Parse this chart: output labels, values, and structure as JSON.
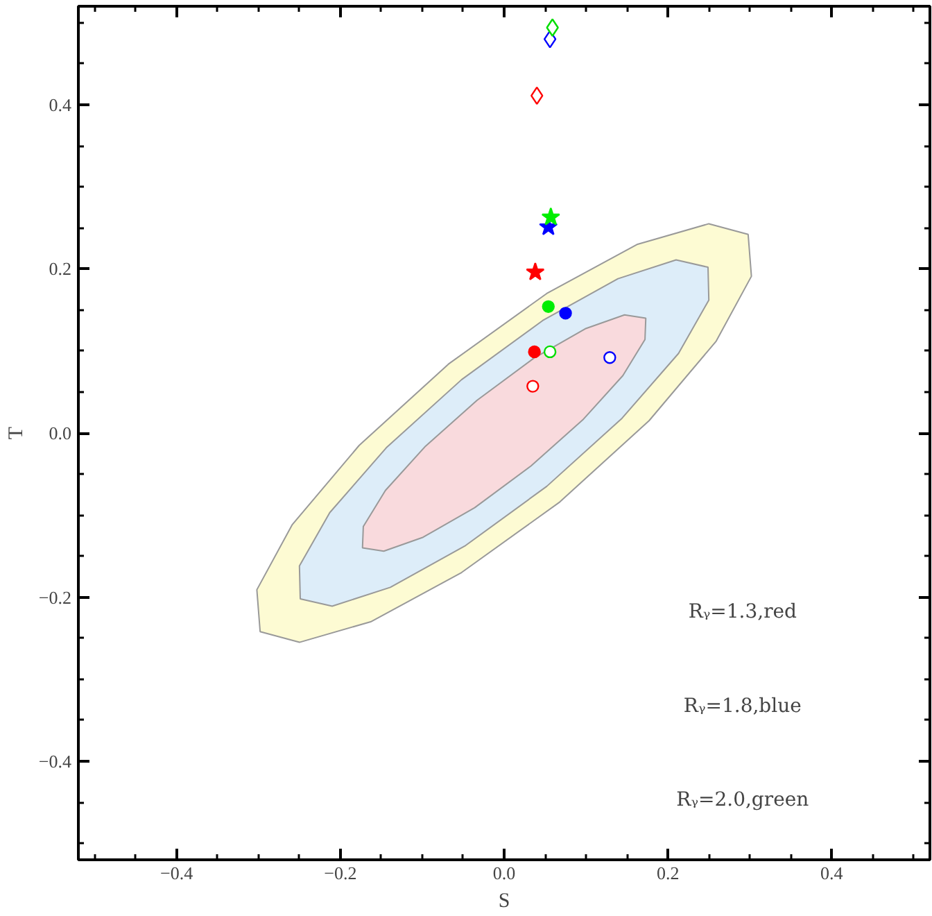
{
  "chart_data": {
    "type": "scatter",
    "xlabel": "S",
    "ylabel": "T",
    "xlim": [
      -0.52,
      0.52
    ],
    "ylim": [
      -0.52,
      0.52
    ],
    "xticks": [
      {
        "value": -0.4,
        "label": "−0.4"
      },
      {
        "value": -0.2,
        "label": "−0.2"
      },
      {
        "value": 0.0,
        "label": "0.0"
      },
      {
        "value": 0.2,
        "label": "0.2"
      },
      {
        "value": 0.4,
        "label": "0.4"
      }
    ],
    "yticks": [
      {
        "value": -0.4,
        "label": "−0.4"
      },
      {
        "value": -0.2,
        "label": "−0.2"
      },
      {
        "value": 0.0,
        "label": "0.0"
      },
      {
        "value": 0.2,
        "label": "0.2"
      },
      {
        "value": 0.4,
        "label": "0.4"
      }
    ],
    "grid": false,
    "series": [
      {
        "type": "area",
        "color": "#fdfbd3",
        "x": [
          0.298,
          0.25,
          0.163,
          0.052,
          -0.068,
          -0.177,
          -0.259,
          -0.302,
          -0.298,
          -0.25,
          -0.163,
          -0.052,
          0.068,
          0.177,
          0.259,
          0.302
        ],
        "values": [
          0.242,
          0.255,
          0.23,
          0.17,
          0.084,
          -0.015,
          -0.112,
          -0.191,
          -0.242,
          -0.255,
          -0.23,
          -0.17,
          -0.084,
          0.015,
          0.112,
          0.191
        ]
      },
      {
        "type": "area",
        "color": "#ddedf9",
        "x": [
          0.249,
          0.21,
          0.139,
          0.047,
          -0.052,
          -0.144,
          -0.213,
          -0.25,
          -0.249,
          -0.21,
          -0.139,
          -0.047,
          0.052,
          0.144,
          0.213,
          0.25
        ],
        "values": [
          0.202,
          0.211,
          0.188,
          0.137,
          0.065,
          -0.018,
          -0.097,
          -0.162,
          -0.202,
          -0.211,
          -0.188,
          -0.137,
          -0.065,
          0.018,
          0.097,
          0.162
        ]
      },
      {
        "type": "area",
        "color": "#f9dadd",
        "x": [
          0.173,
          0.147,
          0.099,
          0.036,
          -0.033,
          -0.096,
          -0.145,
          -0.172,
          -0.173,
          -0.147,
          -0.099,
          -0.036,
          0.033,
          0.096,
          0.145,
          0.172
        ],
        "values": [
          0.14,
          0.144,
          0.127,
          0.091,
          0.04,
          -0.016,
          -0.07,
          -0.114,
          -0.14,
          -0.144,
          -0.127,
          -0.091,
          -0.04,
          0.016,
          0.07,
          0.114
        ]
      },
      {
        "marker": "circle",
        "color": "#ffffff",
        "x": [
          0.035,
          0.129,
          0.056
        ],
        "values": [
          0.057,
          0.092,
          0.099
        ],
        "colors": [
          "#ff0000",
          "#0000ff",
          "#00dd00"
        ]
      },
      {
        "marker": "circle",
        "x": [
          0.037,
          0.075,
          0.054
        ],
        "values": [
          0.099,
          0.146,
          0.154
        ],
        "colors": [
          "#ff0000",
          "#0000ff",
          "#00ee00"
        ]
      },
      {
        "marker": "star",
        "x": [
          0.038,
          0.054,
          0.057
        ],
        "values": [
          0.196,
          0.251,
          0.263
        ],
        "colors": [
          "#ff0000",
          "#0000ff",
          "#00ee00"
        ]
      },
      {
        "marker": "diamond",
        "color": "#ffffff",
        "x": [
          0.04,
          0.056,
          0.059
        ],
        "values": [
          0.411,
          0.48,
          0.494
        ],
        "colors": [
          "#ff0000",
          "#0000ff",
          "#00dd00"
        ]
      }
    ],
    "annotations": [
      "Rᵧ=1.3,red",
      "Rᵧ=1.8,blue",
      "Rᵧ=2.0,green"
    ]
  }
}
